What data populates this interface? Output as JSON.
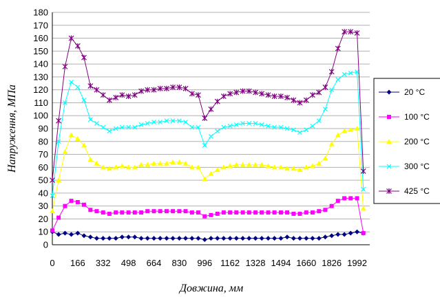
{
  "chart_data": {
    "type": "line",
    "xlabel": "Довжина, мм",
    "ylabel": "Напруження, МПа",
    "ylim": [
      0,
      180
    ],
    "yticks": [
      0,
      10,
      20,
      30,
      40,
      50,
      60,
      70,
      80,
      90,
      100,
      110,
      120,
      130,
      140,
      150,
      160,
      170,
      180
    ],
    "xlim": [
      0,
      2075
    ],
    "xticks": [
      "0",
      "166",
      "332",
      "498",
      "664",
      "830",
      "996",
      "1162",
      "1328",
      "1494",
      "1660",
      "1826",
      "1992"
    ],
    "grid": "horizontal",
    "legend_position": "right",
    "x": [
      0,
      41,
      83,
      124,
      166,
      207,
      249,
      290,
      332,
      373,
      415,
      456,
      498,
      539,
      581,
      622,
      664,
      705,
      747,
      788,
      830,
      871,
      913,
      954,
      996,
      1037,
      1079,
      1120,
      1162,
      1203,
      1245,
      1286,
      1328,
      1369,
      1411,
      1452,
      1494,
      1535,
      1577,
      1618,
      1660,
      1701,
      1743,
      1784,
      1826,
      1867,
      1909,
      1950,
      1992,
      2033
    ],
    "series": [
      {
        "name": "20 °C",
        "color": "#000080",
        "marker": "diamond",
        "values": [
          10,
          8,
          9,
          8,
          9,
          7,
          6,
          5,
          5,
          5,
          5,
          6,
          6,
          6,
          5,
          5,
          5,
          5,
          5,
          5,
          5,
          5,
          5,
          5,
          4,
          5,
          5,
          5,
          5,
          5,
          5,
          5,
          5,
          5,
          5,
          5,
          5,
          6,
          5,
          5,
          5,
          5,
          5,
          6,
          7,
          8,
          8,
          9,
          10,
          9
        ]
      },
      {
        "name": "100 °C",
        "color": "#ff00ff",
        "marker": "square",
        "values": [
          11,
          21,
          30,
          34,
          33,
          31,
          27,
          26,
          25,
          24,
          25,
          25,
          25,
          25,
          25,
          26,
          26,
          26,
          26,
          26,
          26,
          26,
          25,
          25,
          22,
          23,
          24,
          25,
          25,
          25,
          25,
          25,
          25,
          25,
          25,
          25,
          25,
          25,
          24,
          24,
          25,
          25,
          26,
          27,
          30,
          34,
          36,
          36,
          36,
          9
        ]
      },
      {
        "name": "200 °C",
        "color": "#ffff00",
        "marker": "triangle",
        "values": [
          26,
          50,
          72,
          85,
          82,
          77,
          66,
          63,
          60,
          59,
          60,
          61,
          60,
          60,
          62,
          62,
          63,
          63,
          63,
          64,
          64,
          63,
          60,
          60,
          51,
          55,
          58,
          60,
          61,
          62,
          62,
          62,
          62,
          62,
          61,
          60,
          60,
          59,
          59,
          58,
          60,
          61,
          63,
          67,
          78,
          85,
          88,
          89,
          90,
          28
        ]
      },
      {
        "name": "300 °C",
        "color": "#00ffff",
        "marker": "x",
        "values": [
          38,
          80,
          110,
          126,
          122,
          112,
          97,
          94,
          91,
          88,
          90,
          91,
          91,
          91,
          93,
          94,
          95,
          95,
          96,
          96,
          96,
          95,
          91,
          91,
          77,
          84,
          88,
          91,
          92,
          93,
          94,
          94,
          94,
          93,
          92,
          91,
          91,
          90,
          89,
          87,
          89,
          92,
          96,
          105,
          120,
          128,
          132,
          133,
          134,
          43
        ]
      },
      {
        "name": "425 °C",
        "color": "#800080",
        "marker": "star",
        "values": [
          50,
          96,
          138,
          160,
          154,
          145,
          123,
          120,
          116,
          112,
          114,
          116,
          115,
          116,
          119,
          120,
          120,
          121,
          121,
          122,
          122,
          121,
          117,
          116,
          98,
          105,
          111,
          115,
          117,
          118,
          119,
          119,
          118,
          117,
          116,
          115,
          115,
          114,
          112,
          110,
          112,
          116,
          118,
          122,
          134,
          152,
          165,
          165,
          164,
          57
        ]
      }
    ]
  }
}
